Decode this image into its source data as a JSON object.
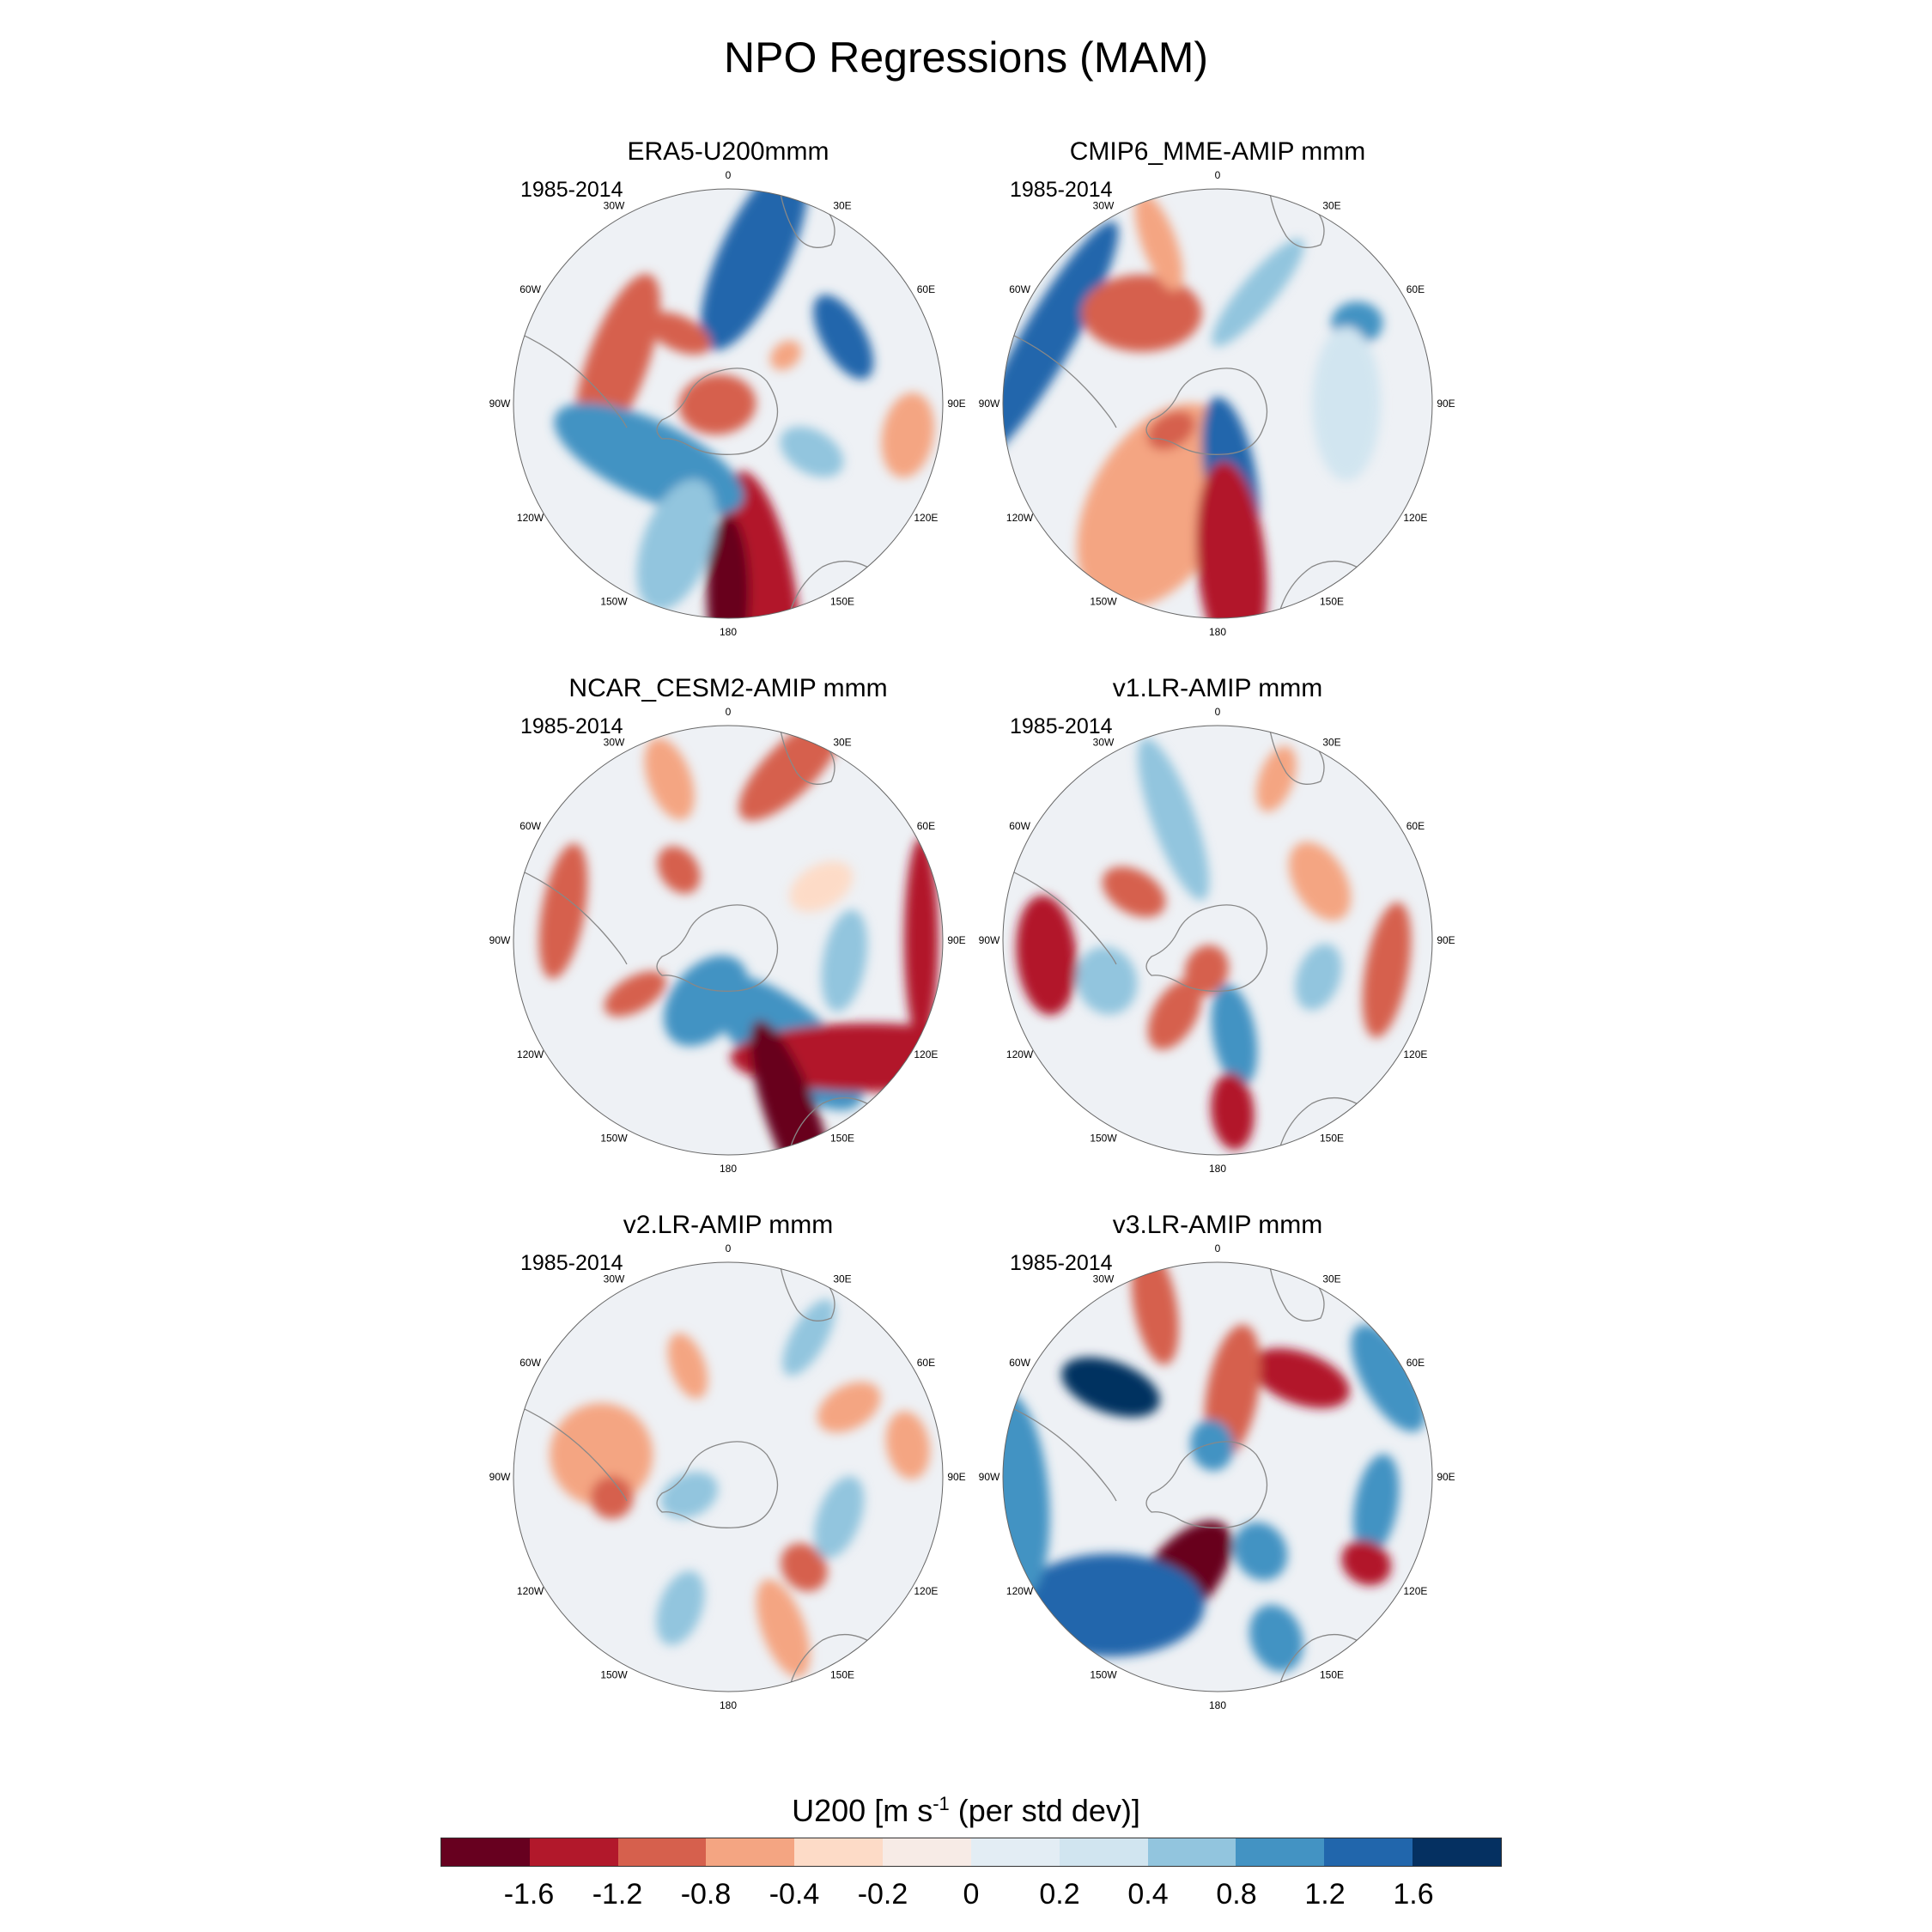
{
  "title": "NPO Regressions (MAM)",
  "period": "1985-2014",
  "lon_labels": [
    "0",
    "30E",
    "60E",
    "90E",
    "120E",
    "150E",
    "180",
    "150W",
    "120W",
    "90W",
    "60W",
    "30W"
  ],
  "panels": [
    {
      "title": "ERA5-U200mmm"
    },
    {
      "title": "CMIP6_MME-AMIP  mmm"
    },
    {
      "title": "NCAR_CESM2-AMIP  mmm"
    },
    {
      "title": "v1.LR-AMIP  mmm"
    },
    {
      "title": "v2.LR-AMIP  mmm"
    },
    {
      "title": "v3.LR-AMIP  mmm"
    }
  ],
  "colorbar": {
    "title": "U200 [m s-1 (per std dev)]",
    "title_parts": {
      "main": "U200 [m s",
      "sup": "-1",
      "rest": " (per std dev)]"
    },
    "labels": [
      "-1.6",
      "-1.2",
      "-0.8",
      "-0.4",
      "-0.2",
      "0",
      "0.2",
      "0.4",
      "0.8",
      "1.2",
      "1.6"
    ],
    "colors": [
      "#67001f",
      "#b2182b",
      "#d6604d",
      "#f4a582",
      "#fddbc7",
      "#f7ebe6",
      "#e3edf4",
      "#d1e5f0",
      "#92c5de",
      "#4393c3",
      "#2166ac",
      "#053061"
    ]
  }
}
